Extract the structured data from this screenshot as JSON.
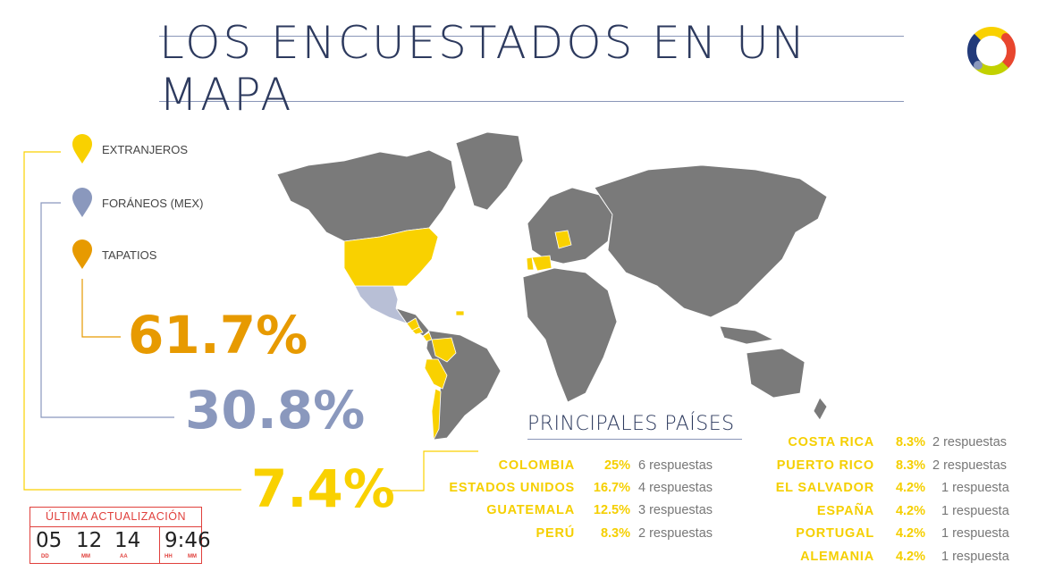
{
  "title": "LOS ENCUESTADOS EN UN MAPA",
  "legend": [
    {
      "label": "EXTRANJEROS",
      "color": "#f9d100"
    },
    {
      "label": "FORÁNEOS (MEX)",
      "color": "#8a98bd"
    },
    {
      "label": "TAPATIOS",
      "color": "#e79a00"
    }
  ],
  "percentages": {
    "tapatios": {
      "value": "61.7%",
      "color": "#e79a00"
    },
    "foraneos": {
      "value": "30.8%",
      "color": "#8a98bd"
    },
    "extranjeros": {
      "value": "7.4%",
      "color": "#f9d100"
    }
  },
  "principales": {
    "title": "PRINCIPALES PAÍSES",
    "left": [
      {
        "country": "COLOMBIA",
        "pct": "25%",
        "resp": "6 respuestas"
      },
      {
        "country": "ESTADOS UNIDOS",
        "pct": "16.7%",
        "resp": "4 respuestas"
      },
      {
        "country": "GUATEMALA",
        "pct": "12.5%",
        "resp": "3 respuestas"
      },
      {
        "country": "PERÚ",
        "pct": "8.3%",
        "resp": "2 respuestas"
      }
    ],
    "right": [
      {
        "country": "COSTA RICA",
        "pct": "8.3%",
        "resp": "2 respuestas"
      },
      {
        "country": "PUERTO RICO",
        "pct": "8.3%",
        "resp": "2 respuestas"
      },
      {
        "country": "EL SALVADOR",
        "pct": "4.2%",
        "resp": "1 respuesta"
      },
      {
        "country": "ESPAÑA",
        "pct": "4.2%",
        "resp": "1 respuesta"
      },
      {
        "country": "PORTUGAL",
        "pct": "4.2%",
        "resp": "1 respuesta"
      },
      {
        "country": "ALEMANIA",
        "pct": "4.2%",
        "resp": "1 respuesta"
      }
    ]
  },
  "update": {
    "label": "ÚLTIMA ACTUALIZACIÓN",
    "dd": "05",
    "mm": "12",
    "aa": "14",
    "time": "9:46",
    "dd_label": "DD",
    "mm_label": "MM",
    "aa_label": "AA",
    "hh_label": "HH",
    "min_label": "MM"
  },
  "colors": {
    "land": "#7a7a7a",
    "highlight": "#f9d100",
    "mexico": "#b8bfd6"
  }
}
